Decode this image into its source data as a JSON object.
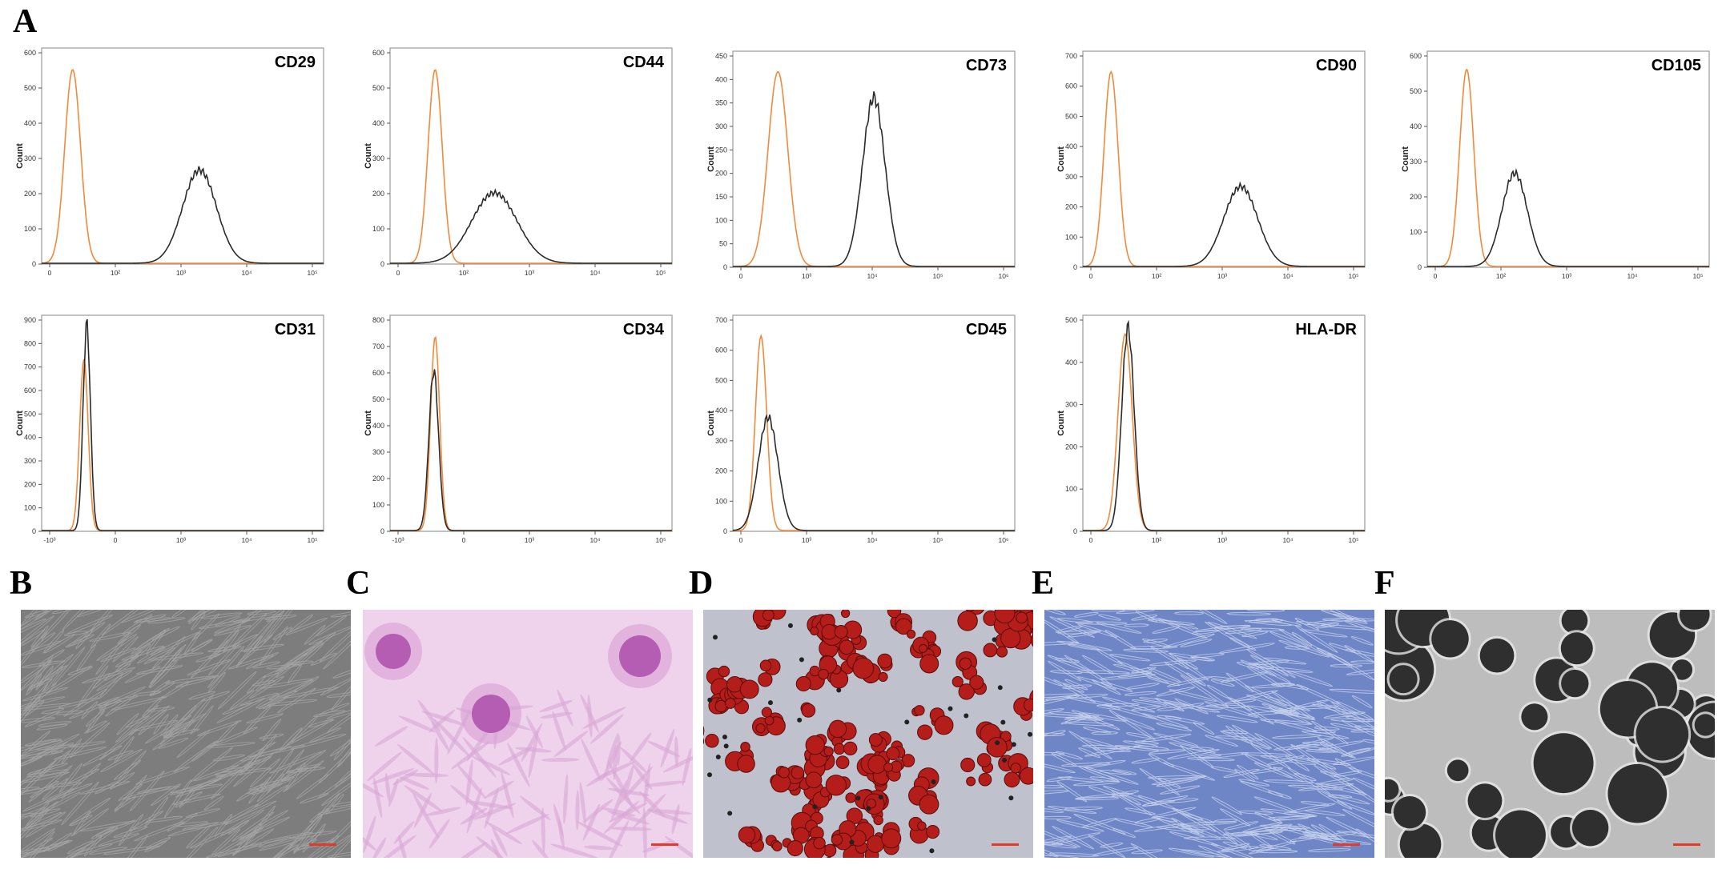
{
  "figure": {
    "panel_letters": [
      "A",
      "B",
      "C",
      "D",
      "E",
      "F"
    ]
  },
  "colors": {
    "isotype": "#f08a3c",
    "marker": "#2b2b2b",
    "frame": "#9a9a9a"
  },
  "chart_data": [
    {
      "type": "line",
      "title": "CD29",
      "ylabel": "Count",
      "xscale": "log",
      "yticks": [
        "0",
        "100",
        "200",
        "300",
        "400",
        "500",
        "600"
      ],
      "ylim": [
        0,
        600
      ],
      "xticks": [
        "0",
        "10²",
        "10³",
        "10⁴",
        "10⁵"
      ],
      "series": [
        {
          "role": "isotype",
          "peak_x": 0.11,
          "peak_y": 550,
          "width": 0.028
        },
        {
          "role": "marker",
          "peak_x": 0.56,
          "peak_y": 265,
          "width": 0.06
        }
      ]
    },
    {
      "type": "line",
      "title": "CD44",
      "ylabel": "Count",
      "xscale": "log",
      "yticks": [
        "0",
        "100",
        "200",
        "300",
        "400",
        "500",
        "600"
      ],
      "ylim": [
        0,
        600
      ],
      "xticks": [
        "0",
        "10²",
        "10³",
        "10⁴",
        "10⁵"
      ],
      "series": [
        {
          "role": "isotype",
          "peak_x": 0.16,
          "peak_y": 550,
          "width": 0.025
        },
        {
          "role": "marker",
          "peak_x": 0.37,
          "peak_y": 200,
          "width": 0.08
        }
      ]
    },
    {
      "type": "line",
      "title": "CD73",
      "ylabel": "Count",
      "xscale": "log",
      "yticks": [
        "0",
        "50",
        "100",
        "150",
        "200",
        "250",
        "300",
        "350",
        "400",
        "450"
      ],
      "ylim": [
        0,
        450
      ],
      "xticks": [
        "0",
        "10³",
        "10⁴",
        "10⁵",
        "10⁶"
      ],
      "series": [
        {
          "role": "isotype",
          "peak_x": 0.16,
          "peak_y": 415,
          "width": 0.035
        },
        {
          "role": "marker",
          "peak_x": 0.5,
          "peak_y": 360,
          "width": 0.04
        }
      ]
    },
    {
      "type": "line",
      "title": "CD90",
      "ylabel": "Count",
      "xscale": "log",
      "yticks": [
        "0",
        "100",
        "200",
        "300",
        "400",
        "500",
        "600",
        "700"
      ],
      "ylim": [
        0,
        700
      ],
      "xticks": [
        "0",
        "10²",
        "10³",
        "10⁴",
        "10⁵"
      ],
      "series": [
        {
          "role": "isotype",
          "peak_x": 0.1,
          "peak_y": 645,
          "width": 0.025
        },
        {
          "role": "marker",
          "peak_x": 0.56,
          "peak_y": 265,
          "width": 0.06
        }
      ]
    },
    {
      "type": "line",
      "title": "CD105",
      "ylabel": "Count",
      "xscale": "log",
      "yticks": [
        "0",
        "100",
        "200",
        "300",
        "400",
        "500",
        "600"
      ],
      "ylim": [
        0,
        600
      ],
      "xticks": [
        "0",
        "10²",
        "10³",
        "10⁴",
        "10⁵"
      ],
      "series": [
        {
          "role": "isotype",
          "peak_x": 0.14,
          "peak_y": 560,
          "width": 0.025
        },
        {
          "role": "marker",
          "peak_x": 0.31,
          "peak_y": 265,
          "width": 0.045
        }
      ]
    },
    {
      "type": "line",
      "title": "CD31",
      "ylabel": "Count",
      "xscale": "log",
      "yticks": [
        "0",
        "100",
        "200",
        "300",
        "400",
        "500",
        "600",
        "700",
        "800",
        "900"
      ],
      "ylim": [
        0,
        900
      ],
      "xticks": [
        "-10³",
        "0",
        "10³",
        "10⁴",
        "10⁵"
      ],
      "series": [
        {
          "role": "isotype",
          "peak_x": 0.15,
          "peak_y": 730,
          "width": 0.015
        },
        {
          "role": "marker",
          "peak_x": 0.16,
          "peak_y": 880,
          "width": 0.013
        }
      ]
    },
    {
      "type": "line",
      "title": "CD34",
      "ylabel": "Count",
      "xscale": "log",
      "yticks": [
        "0",
        "100",
        "200",
        "300",
        "400",
        "500",
        "600",
        "700",
        "800"
      ],
      "ylim": [
        0,
        800
      ],
      "xticks": [
        "-10³",
        "0",
        "10³",
        "10⁴",
        "10⁵"
      ],
      "series": [
        {
          "role": "isotype",
          "peak_x": 0.16,
          "peak_y": 735,
          "width": 0.016
        },
        {
          "role": "marker",
          "peak_x": 0.155,
          "peak_y": 605,
          "width": 0.017
        }
      ]
    },
    {
      "type": "line",
      "title": "CD45",
      "ylabel": "Count",
      "xscale": "log",
      "yticks": [
        "0",
        "100",
        "200",
        "300",
        "400",
        "500",
        "600",
        "700"
      ],
      "ylim": [
        0,
        700
      ],
      "xticks": [
        "0",
        "10³",
        "10⁴",
        "10⁵",
        "10⁶"
      ],
      "series": [
        {
          "role": "isotype",
          "peak_x": 0.1,
          "peak_y": 645,
          "width": 0.02
        },
        {
          "role": "marker",
          "peak_x": 0.125,
          "peak_y": 375,
          "width": 0.035
        }
      ]
    },
    {
      "type": "line",
      "title": "HLA-DR",
      "ylabel": "Count",
      "xscale": "log",
      "yticks": [
        "0",
        "100",
        "200",
        "300",
        "400",
        "500"
      ],
      "ylim": [
        0,
        500
      ],
      "xticks": [
        "0",
        "10²",
        "10³",
        "10⁴",
        "10⁵"
      ],
      "series": [
        {
          "role": "isotype",
          "peak_x": 0.15,
          "peak_y": 465,
          "width": 0.025
        },
        {
          "role": "marker",
          "peak_x": 0.16,
          "peak_y": 480,
          "width": 0.022
        }
      ]
    }
  ],
  "micrographs": [
    {
      "panel": "B",
      "stain": "phase contrast, spindle cells",
      "bg": "#7d7d7d",
      "fg": "#a6a6a6",
      "scale_bar_color": "#e03a2a"
    },
    {
      "panel": "C",
      "stain": "pink colonies",
      "bg": "#efd2ec",
      "fg": "#b55cb3",
      "scale_bar_color": "#e03a2a"
    },
    {
      "panel": "D",
      "stain": "red lipid droplets",
      "bg": "#bfc2cc",
      "fg": "#b51d1a",
      "scale_bar_color": "#e03a2a"
    },
    {
      "panel": "E",
      "stain": "blue fibroblastic",
      "bg": "#6f86c6",
      "fg": "#c8d3ee",
      "scale_bar_color": "#e03a2a"
    },
    {
      "panel": "F",
      "stain": "grey spheroids",
      "bg": "#bdbdbd",
      "fg": "#2f2f2f",
      "scale_bar_color": "#e03a2a"
    }
  ]
}
